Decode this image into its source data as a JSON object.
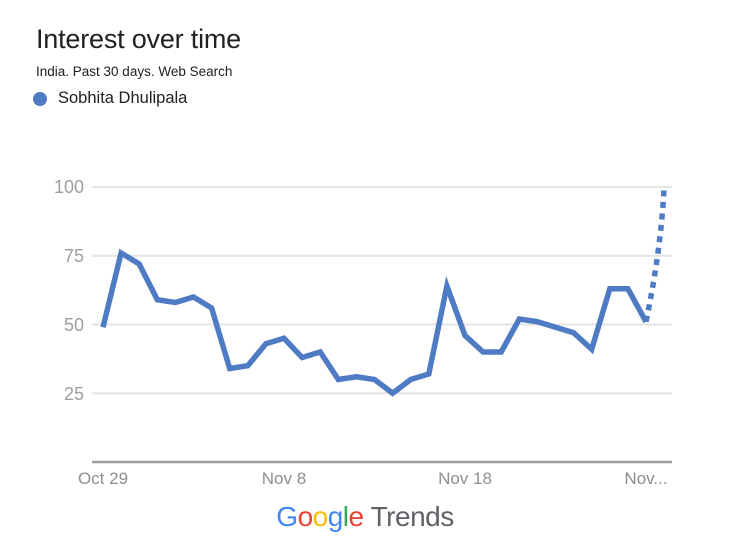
{
  "header": {
    "title": "Interest over time",
    "subtitle": "India. Past 30 days. Web Search",
    "legend": {
      "series_label": "Sobhita Dhulipala",
      "dot_style": "background:#4e7bc4"
    }
  },
  "chart_data": {
    "type": "line",
    "title": "Interest over time",
    "subtitle": "India. Past 30 days. Web Search",
    "legend_position": "top-left",
    "grid": "horizontal",
    "ylim": [
      0,
      100
    ],
    "yticks": [
      100,
      75,
      50,
      25
    ],
    "ytick_labels": [
      "100",
      "75",
      "50",
      "25"
    ],
    "xticks": [
      {
        "label": "Oct 29",
        "day_index": 0
      },
      {
        "label": "Nov 8",
        "day_index": 10
      },
      {
        "label": "Nov 18",
        "day_index": 20
      },
      {
        "label": "Nov...",
        "day_index": 30
      }
    ],
    "x": [
      "Oct 29",
      "Oct 30",
      "Oct 31",
      "Nov 1",
      "Nov 2",
      "Nov 3",
      "Nov 4",
      "Nov 5",
      "Nov 6",
      "Nov 7",
      "Nov 8",
      "Nov 9",
      "Nov 10",
      "Nov 11",
      "Nov 12",
      "Nov 13",
      "Nov 14",
      "Nov 15",
      "Nov 16",
      "Nov 17",
      "Nov 18",
      "Nov 19",
      "Nov 20",
      "Nov 21",
      "Nov 22",
      "Nov 23",
      "Nov 24",
      "Nov 25",
      "Nov 26",
      "Nov 27",
      "Nov 28",
      "Nov 29"
    ],
    "series": [
      {
        "name": "Sobhita Dhulipala",
        "values": [
          49,
          76,
          72,
          59,
          58,
          60,
          56,
          34,
          35,
          43,
          45,
          38,
          40,
          30,
          31,
          30,
          25,
          30,
          32,
          64,
          46,
          40,
          40,
          52,
          51,
          49,
          47,
          41,
          63,
          63,
          51,
          100
        ],
        "dashed_from_index": 30
      }
    ],
    "line_color": "#4e7bc4",
    "grid_color": "#e4e4e4",
    "axis_color": "#9e9e9e",
    "ytick_color": "#9e9e9e",
    "xtick_color": "#8e8e8e"
  },
  "footer": {
    "logo": {
      "google_letters": [
        {
          "ch": "G",
          "style": "color:#4285f4"
        },
        {
          "ch": "o",
          "style": "color:#ea4335"
        },
        {
          "ch": "o",
          "style": "color:#fbbc05"
        },
        {
          "ch": "g",
          "style": "color:#4285f4"
        },
        {
          "ch": "l",
          "style": "color:#34a853"
        },
        {
          "ch": "e",
          "style": "color:#ea4335"
        }
      ],
      "trends_text": "Trends",
      "trends_style": "color:#5f6368"
    }
  }
}
